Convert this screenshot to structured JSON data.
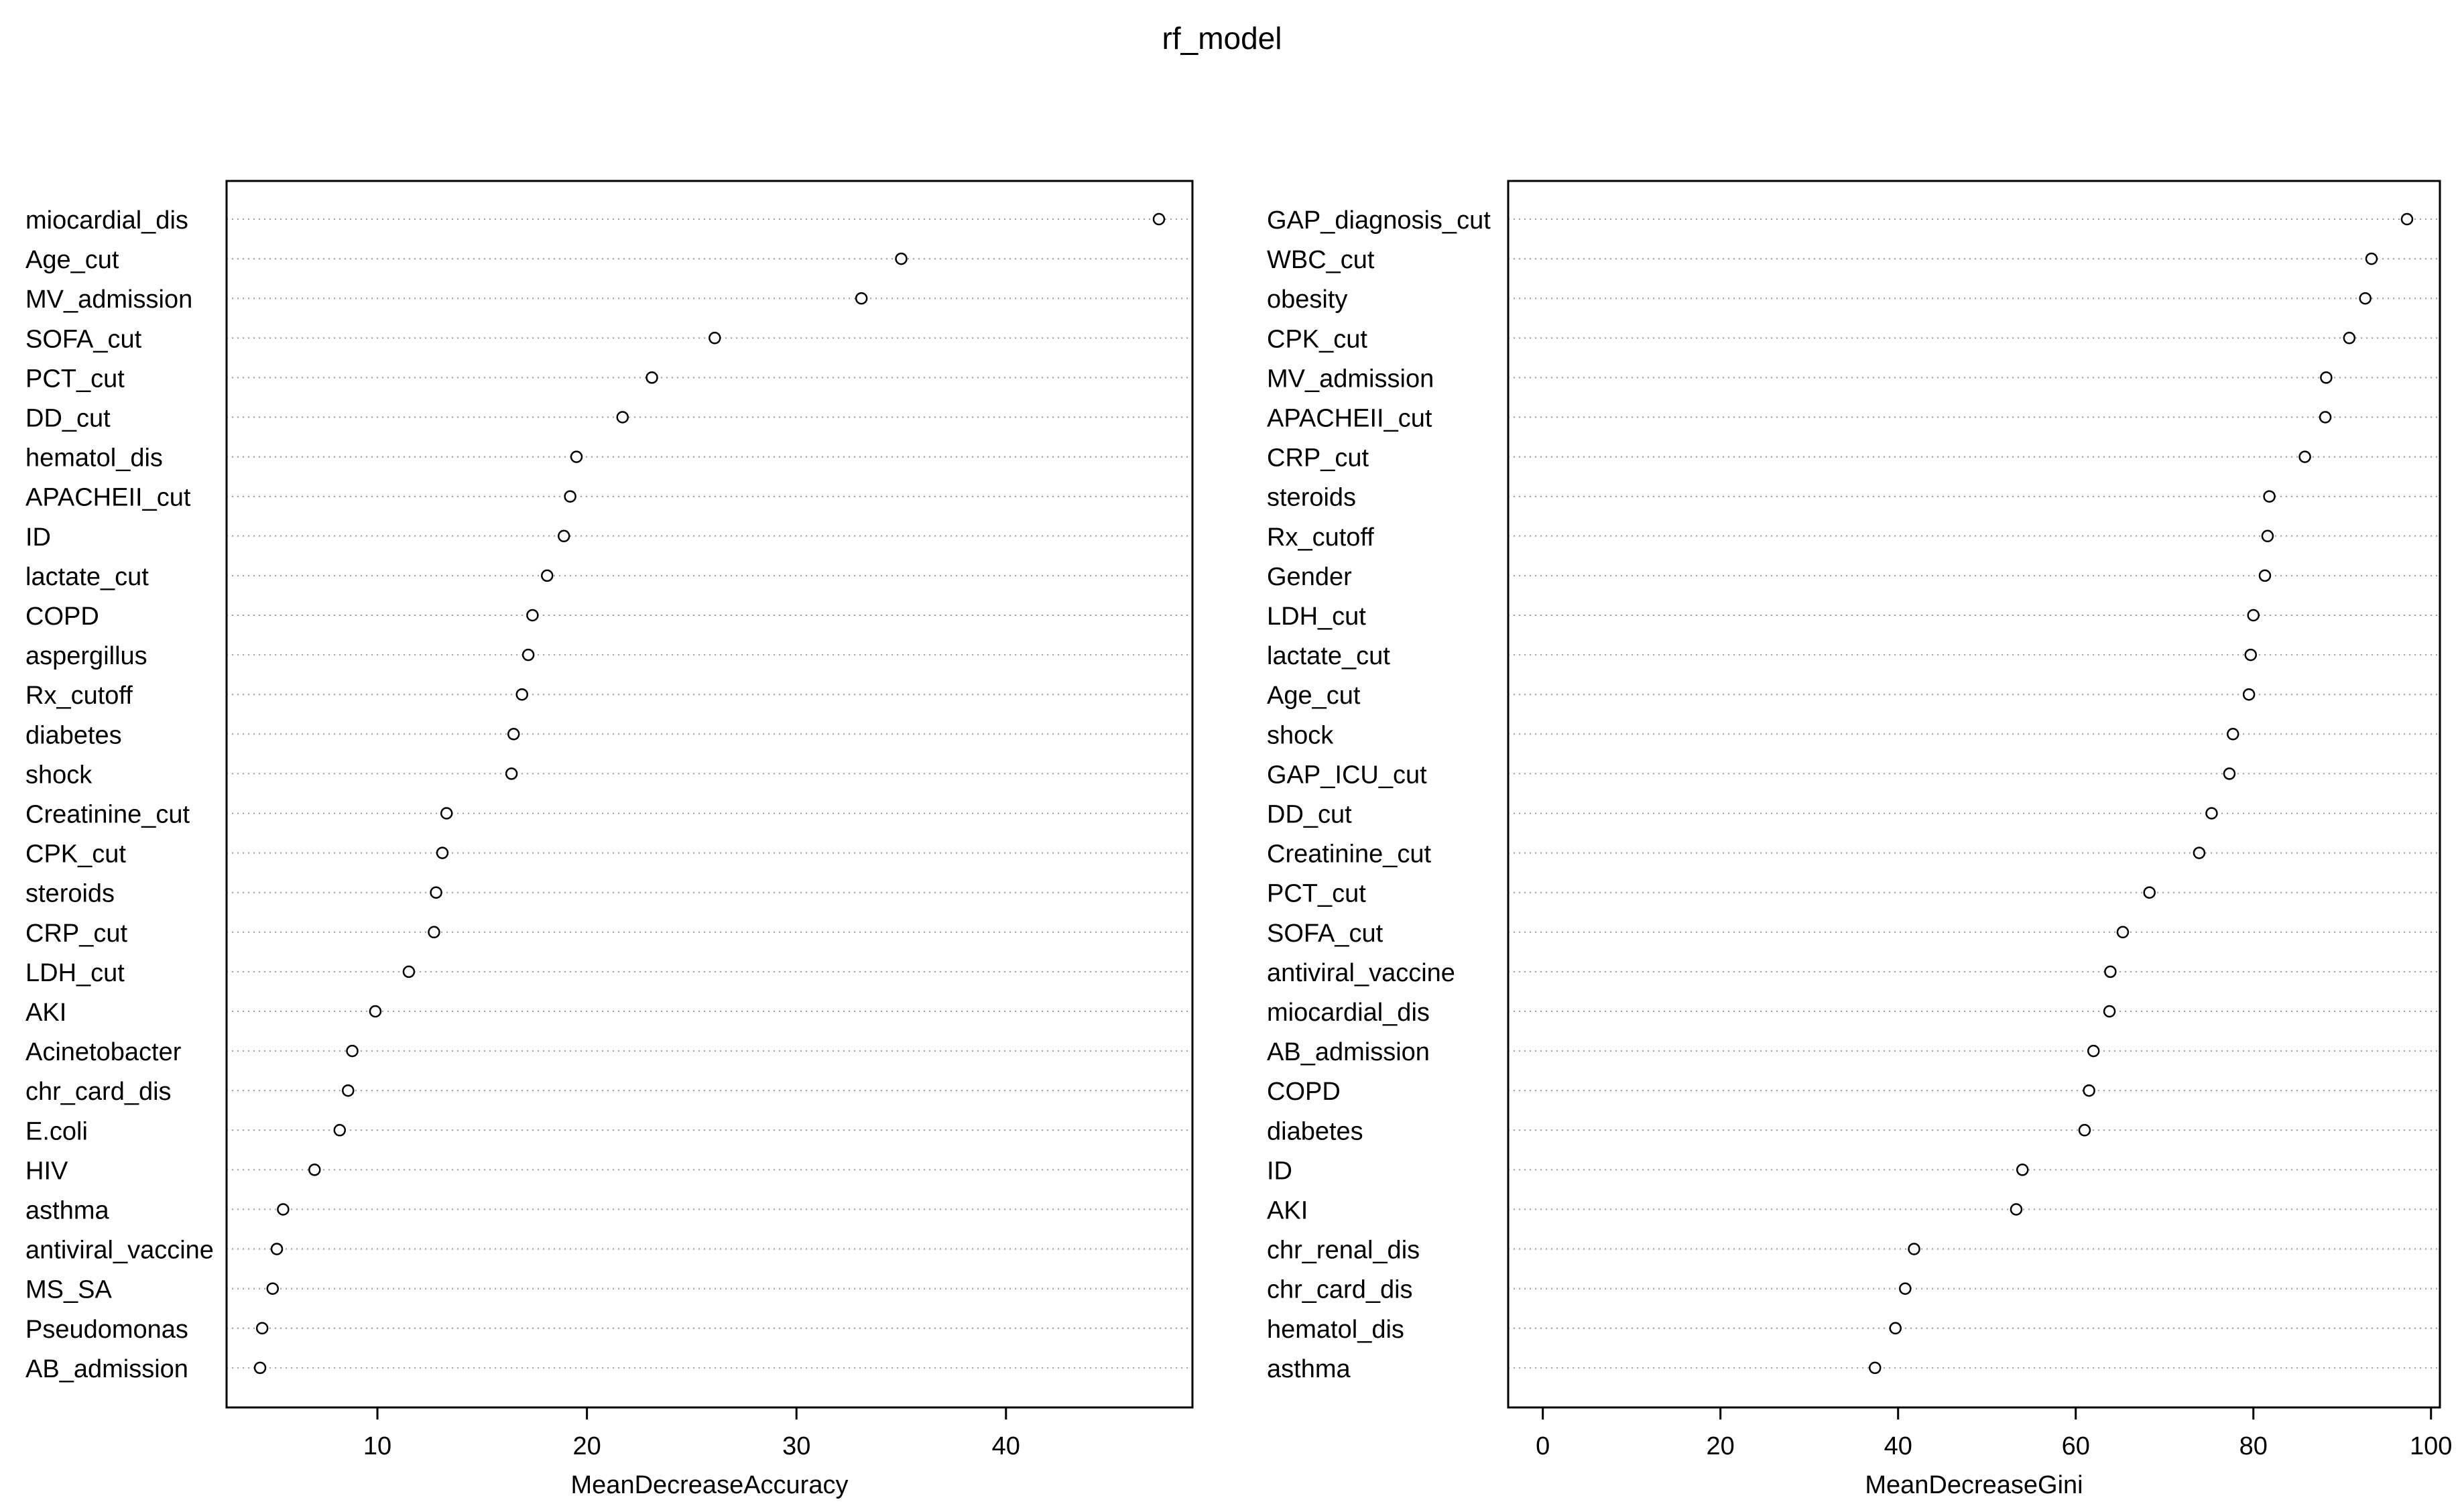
{
  "title": "rf_model",
  "chart_data": [
    {
      "type": "scatter",
      "xlabel": "MeanDecreaseAccuracy",
      "ylabel": "",
      "xticks": [
        10,
        20,
        30,
        40
      ],
      "xlim": [
        2.8,
        48.9
      ],
      "grid": "dotted horizontal lines",
      "marker": "open circle",
      "categories": [
        "miocardial_dis",
        "Age_cut",
        "MV_admission",
        "SOFA_cut",
        "PCT_cut",
        "DD_cut",
        "hematol_dis",
        "APACHEII_cut",
        "ID",
        "lactate_cut",
        "COPD",
        "aspergillus",
        "Rx_cutoff",
        "diabetes",
        "shock",
        "Creatinine_cut",
        "CPK_cut",
        "steroids",
        "CRP_cut",
        "LDH_cut",
        "AKI",
        "Acinetobacter",
        "chr_card_dis",
        "E.coli",
        "HIV",
        "asthma",
        "antiviral_vaccine",
        "MS_SA",
        "Pseudomonas",
        "AB_admission"
      ],
      "values": [
        47.3,
        35.0,
        33.1,
        26.1,
        23.1,
        21.7,
        19.5,
        19.2,
        18.9,
        18.1,
        17.4,
        17.2,
        16.9,
        16.5,
        16.4,
        13.3,
        13.1,
        12.8,
        12.7,
        11.5,
        9.9,
        8.8,
        8.6,
        8.2,
        7.0,
        5.5,
        5.2,
        5.0,
        4.5,
        4.4
      ]
    },
    {
      "type": "scatter",
      "xlabel": "MeanDecreaseGini",
      "ylabel": "",
      "xticks": [
        0,
        20,
        40,
        60,
        80,
        100
      ],
      "xlim": [
        -3.9,
        101.0
      ],
      "grid": "dotted horizontal lines",
      "marker": "open circle",
      "categories": [
        "GAP_diagnosis_cut",
        "WBC_cut",
        "obesity",
        "CPK_cut",
        "MV_admission",
        "APACHEII_cut",
        "CRP_cut",
        "steroids",
        "Rx_cutoff",
        "Gender",
        "LDH_cut",
        "lactate_cut",
        "Age_cut",
        "shock",
        "GAP_ICU_cut",
        "DD_cut",
        "Creatinine_cut",
        "PCT_cut",
        "SOFA_cut",
        "antiviral_vaccine",
        "miocardial_dis",
        "AB_admission",
        "COPD",
        "diabetes",
        "ID",
        "AKI",
        "chr_renal_dis",
        "chr_card_dis",
        "hematol_dis",
        "asthma"
      ],
      "values": [
        97.3,
        93.3,
        92.6,
        90.8,
        88.2,
        88.1,
        85.8,
        81.8,
        81.6,
        81.3,
        80.0,
        79.7,
        79.5,
        77.7,
        77.3,
        75.3,
        73.9,
        68.3,
        65.3,
        63.9,
        63.8,
        62.0,
        61.5,
        61.0,
        54.0,
        53.3,
        41.8,
        40.8,
        39.7,
        37.4
      ]
    }
  ]
}
